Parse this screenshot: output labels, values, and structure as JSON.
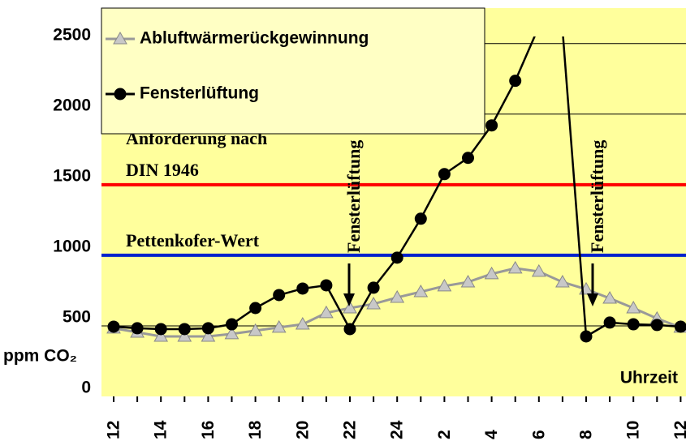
{
  "chart_data": {
    "type": "line",
    "x_label": "Uhrzeit",
    "y_label": "ppm CO₂",
    "categories": [
      "12",
      null,
      "14",
      null,
      "16",
      null,
      "18",
      null,
      "20",
      null,
      "22",
      null,
      "24",
      null,
      "2",
      null,
      "4",
      null,
      "6",
      null,
      "8",
      null,
      "10",
      null,
      "12"
    ],
    "series": [
      {
        "name": "Abluftwärmerückgewinnung",
        "color": "#999999",
        "marker": "triangle",
        "values": [
          483,
          454,
          425,
          425,
          425,
          443,
          466,
          489,
          511,
          592,
          626,
          655,
          701,
          741,
          782,
          810,
          868,
          908,
          885,
          810,
          759,
          695,
          626,
          552,
          489
        ]
      },
      {
        "name": "Fensterlüftung",
        "color": "#000000",
        "marker": "circle",
        "values": [
          494,
          483,
          477,
          477,
          483,
          511,
          626,
          718,
          764,
          787,
          477,
          770,
          983,
          1259,
          1575,
          1690,
          1920,
          2236,
          2620,
          2600,
          425,
          523,
          511,
          506,
          494
        ]
      }
    ],
    "ylim": [
      0,
      2550
    ],
    "yticks": [
      0,
      500,
      1000,
      1500,
      2000,
      2500
    ],
    "grid": true,
    "reference_lines": [
      {
        "value": 1500,
        "color": "#ff0000",
        "label": [
          "Anforderung nach",
          "DIN 1946"
        ]
      },
      {
        "value": 1000,
        "color": "#0022cc",
        "label": [
          "Pettenkofer-Wert"
        ]
      }
    ],
    "annotations": [
      "Fensterlüftung",
      "Fensterlüftung"
    ]
  }
}
